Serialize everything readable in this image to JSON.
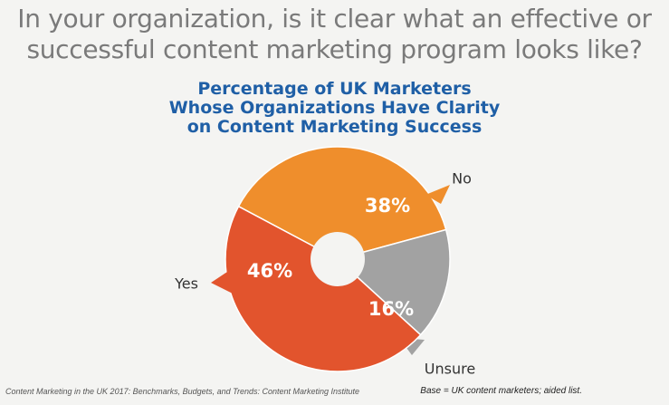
{
  "headline": {
    "line1": "In your organization, is it clear what an effective or",
    "line2": "successful content marketing program looks like?"
  },
  "chart_data": {
    "type": "pie",
    "title_lines": [
      "Percentage of UK Marketers",
      "Whose Organizations Have Clarity",
      "on Content Marketing Success"
    ],
    "slices": [
      {
        "label": "No",
        "value": 38,
        "display": "38%",
        "color": "#ef8e2c"
      },
      {
        "label": "Unsure",
        "value": 16,
        "display": "16%",
        "color": "#a2a2a2"
      },
      {
        "label": "Yes",
        "value": 46,
        "display": "46%",
        "color": "#e2542d"
      }
    ]
  },
  "footer": {
    "source": "Content Marketing in the UK 2017: Benchmarks, Budgets, and Trends: Content Marketing Institute",
    "base": "Base = UK content marketers; aided list."
  }
}
